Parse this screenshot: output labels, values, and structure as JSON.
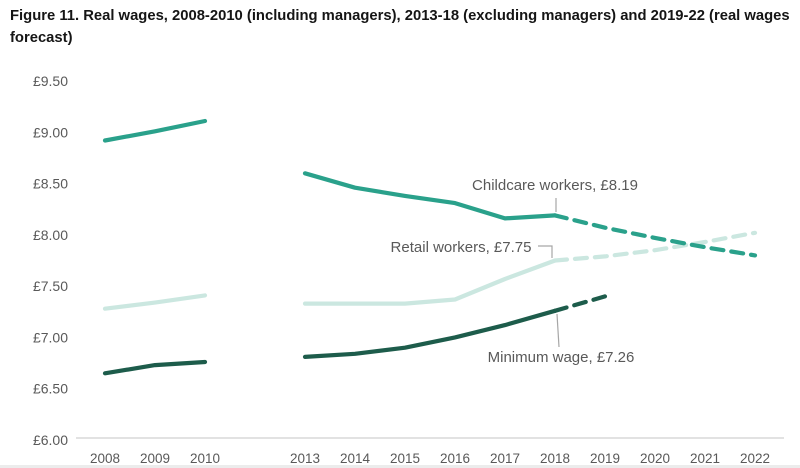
{
  "title": "Figure 11. Real wages, 2008-2010 (including managers), 2013-18 (excluding managers) and 2019-22 (real wages forecast)",
  "colors": {
    "childcare_line": "#2aa18b",
    "retail_line": "#cbe7e0",
    "minimum_wage_line": "#1d5c4b",
    "axis_text": "#595959",
    "axis_line": "#d9d9d9",
    "leader_line": "#a6a6a6",
    "title_text": "#151515"
  },
  "chart_data": {
    "type": "line",
    "title": "Real wages, 2008-2010 (including managers), 2013-18 (excluding managers) and 2019-22 (real wages forecast)",
    "xlabel": "",
    "ylabel": "",
    "currency_prefix": "£",
    "grid": "off",
    "legend_position": "inline-annotations",
    "y_axis": {
      "min": 6.0,
      "max": 9.5,
      "tick_step": 0.5,
      "ticks": [
        {
          "label": "£9.50",
          "value": 9.5
        },
        {
          "label": "£9.00",
          "value": 9.0
        },
        {
          "label": "£8.50",
          "value": 8.5
        },
        {
          "label": "£8.00",
          "value": 8.0
        },
        {
          "label": "£7.50",
          "value": 7.5
        },
        {
          "label": "£7.00",
          "value": 7.0
        },
        {
          "label": "£6.50",
          "value": 6.5
        },
        {
          "label": "£6.00",
          "value": 6.0
        }
      ]
    },
    "x_axis": {
      "years": [
        2008,
        2009,
        2010,
        2013,
        2014,
        2015,
        2016,
        2017,
        2018,
        2019,
        2020,
        2021,
        2022
      ],
      "note_missing_years": "2011 and 2012 omitted (gap shown)"
    },
    "series": [
      {
        "name": "Retail workers",
        "annotation": "Retail workers, £7.75",
        "color": "#cbe7e0",
        "segments": [
          {
            "style": "solid",
            "points": [
              [
                2008,
                7.28
              ],
              [
                2009,
                7.34
              ],
              [
                2010,
                7.41
              ]
            ]
          },
          {
            "style": "solid",
            "points": [
              [
                2013,
                7.33
              ],
              [
                2014,
                7.33
              ],
              [
                2015,
                7.33
              ],
              [
                2016,
                7.37
              ],
              [
                2017,
                7.57
              ],
              [
                2018,
                7.75
              ]
            ]
          },
          {
            "style": "dashed",
            "points": [
              [
                2018,
                7.75
              ],
              [
                2019,
                7.79
              ],
              [
                2020,
                7.85
              ],
              [
                2021,
                7.93
              ],
              [
                2022,
                8.02
              ]
            ]
          }
        ]
      },
      {
        "name": "Childcare workers",
        "annotation": "Childcare workers, £8.19",
        "color": "#2aa18b",
        "segments": [
          {
            "style": "solid",
            "points": [
              [
                2008,
                8.92
              ],
              [
                2009,
                9.01
              ],
              [
                2010,
                9.11
              ]
            ]
          },
          {
            "style": "solid",
            "points": [
              [
                2013,
                8.6
              ],
              [
                2014,
                8.46
              ],
              [
                2015,
                8.38
              ],
              [
                2016,
                8.31
              ],
              [
                2017,
                8.16
              ],
              [
                2018,
                8.19
              ]
            ]
          },
          {
            "style": "dashed",
            "points": [
              [
                2018,
                8.19
              ],
              [
                2019,
                8.07
              ],
              [
                2020,
                7.97
              ],
              [
                2021,
                7.88
              ],
              [
                2022,
                7.8
              ]
            ]
          }
        ]
      },
      {
        "name": "Minimum wage",
        "annotation": "Minimum wage, £7.26",
        "color": "#1d5c4b",
        "segments": [
          {
            "style": "solid",
            "points": [
              [
                2008,
                6.65
              ],
              [
                2009,
                6.73
              ],
              [
                2010,
                6.76
              ]
            ]
          },
          {
            "style": "solid",
            "points": [
              [
                2013,
                6.81
              ],
              [
                2014,
                6.84
              ],
              [
                2015,
                6.9
              ],
              [
                2016,
                7.0
              ],
              [
                2017,
                7.12
              ],
              [
                2018,
                7.26
              ]
            ]
          },
          {
            "style": "dashed",
            "points": [
              [
                2018,
                7.26
              ],
              [
                2019,
                7.4
              ]
            ]
          }
        ]
      }
    ]
  }
}
